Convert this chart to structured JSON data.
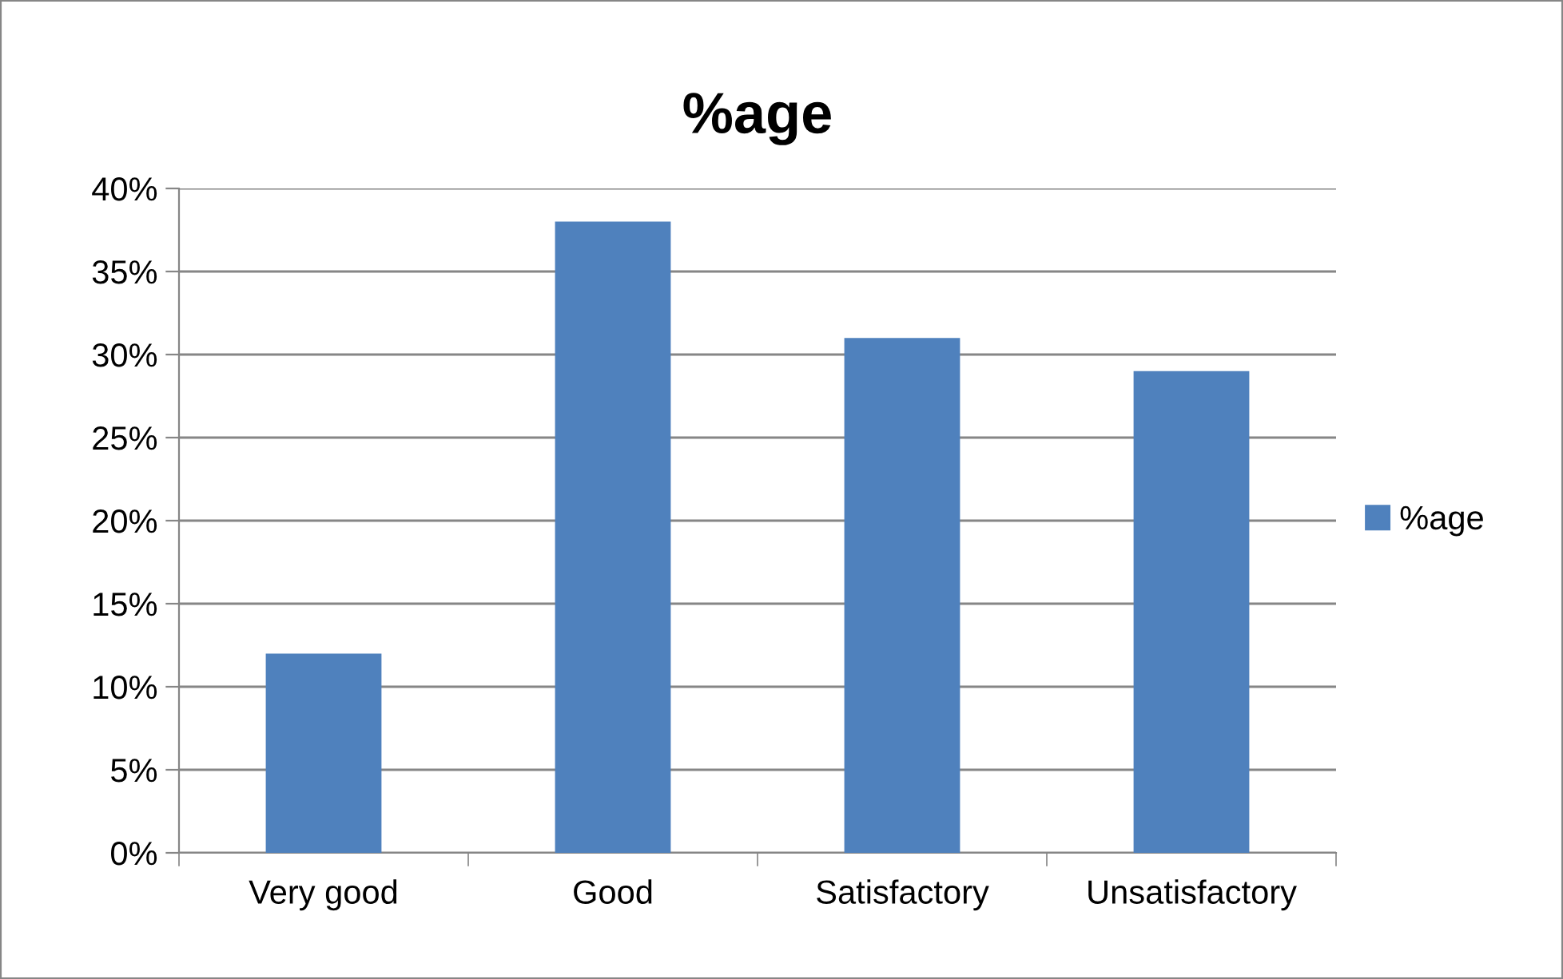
{
  "chart_data": {
    "type": "bar",
    "title": "%age",
    "categories": [
      "Very good",
      "Good",
      "Satisfactory",
      "Unsatisfactory"
    ],
    "series": [
      {
        "name": "%age",
        "color": "#4f81bd",
        "values": [
          12,
          38,
          31,
          29
        ]
      }
    ],
    "ylim": [
      0,
      40
    ],
    "yticks": [
      {
        "value": 0,
        "label": "0%"
      },
      {
        "value": 5,
        "label": "5%"
      },
      {
        "value": 10,
        "label": "10%"
      },
      {
        "value": 15,
        "label": "15%"
      },
      {
        "value": 20,
        "label": "20%"
      },
      {
        "value": 25,
        "label": "25%"
      },
      {
        "value": 30,
        "label": "30%"
      },
      {
        "value": 35,
        "label": "35%"
      },
      {
        "value": 40,
        "label": "40%"
      }
    ],
    "grid": "y",
    "legend": "right"
  }
}
